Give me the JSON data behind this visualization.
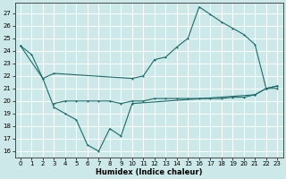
{
  "xlabel": "Humidex (Indice chaleur)",
  "bg_color": "#cde8e8",
  "grid_color": "#b0d4d4",
  "line_color": "#1a6b6b",
  "xlim": [
    -0.5,
    23.5
  ],
  "ylim": [
    15.5,
    27.8
  ],
  "yticks": [
    16,
    17,
    18,
    19,
    20,
    21,
    22,
    23,
    24,
    25,
    26,
    27
  ],
  "xticks": [
    0,
    1,
    2,
    3,
    4,
    5,
    6,
    7,
    8,
    9,
    10,
    11,
    12,
    13,
    14,
    15,
    16,
    17,
    18,
    19,
    20,
    21,
    22,
    23
  ],
  "line1_x": [
    0,
    1,
    2,
    3,
    10,
    11,
    12,
    13,
    14,
    15,
    16,
    17,
    18,
    19,
    20,
    21,
    22,
    23
  ],
  "line1_y": [
    24.4,
    23.7,
    21.8,
    22.2,
    21.8,
    22.0,
    23.3,
    23.5,
    24.3,
    25.0,
    27.5,
    26.9,
    26.3,
    25.8,
    25.3,
    24.5,
    21.0,
    21.0
  ],
  "line2_x": [
    0,
    2,
    3,
    4,
    5,
    6,
    7,
    8,
    9,
    10,
    21,
    22,
    23
  ],
  "line2_y": [
    24.4,
    21.8,
    19.5,
    19.0,
    18.5,
    16.5,
    16.0,
    17.8,
    17.2,
    19.8,
    20.5,
    21.0,
    21.2
  ],
  "line3_x": [
    3,
    4,
    5,
    6,
    7,
    8,
    9,
    10,
    11,
    12,
    13,
    14,
    15,
    16,
    17,
    18,
    19,
    20,
    21,
    22,
    23
  ],
  "line3_y": [
    19.8,
    20.0,
    20.0,
    20.0,
    20.0,
    20.0,
    19.8,
    20.0,
    20.0,
    20.2,
    20.2,
    20.2,
    20.2,
    20.2,
    20.2,
    20.2,
    20.3,
    20.3,
    20.5,
    21.0,
    21.2
  ]
}
